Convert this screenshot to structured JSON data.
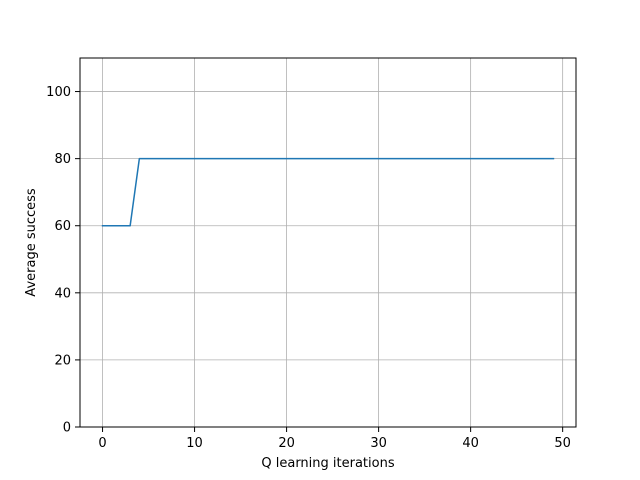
{
  "chart_data": {
    "type": "line",
    "title": "",
    "xlabel": "Q learning iterations",
    "ylabel": "Average success",
    "xlim": [
      -2.45,
      51.45
    ],
    "ylim": [
      0,
      110
    ],
    "xticks": [
      0,
      10,
      20,
      30,
      40,
      50
    ],
    "yticks": [
      0,
      20,
      40,
      60,
      80,
      100
    ],
    "grid": true,
    "legend": false,
    "series": [
      {
        "color": "#1f77b4",
        "x": [
          0,
          1,
          2,
          3,
          4,
          5,
          6,
          7,
          8,
          9,
          10,
          11,
          12,
          13,
          14,
          15,
          16,
          17,
          18,
          19,
          20,
          21,
          22,
          23,
          24,
          25,
          26,
          27,
          28,
          29,
          30,
          31,
          32,
          33,
          34,
          35,
          36,
          37,
          38,
          39,
          40,
          41,
          42,
          43,
          44,
          45,
          46,
          47,
          48,
          49
        ],
        "y": [
          60,
          60,
          60,
          60,
          80,
          80,
          80,
          80,
          80,
          80,
          80,
          80,
          80,
          80,
          80,
          80,
          80,
          80,
          80,
          80,
          80,
          80,
          80,
          80,
          80,
          80,
          80,
          80,
          80,
          80,
          80,
          80,
          80,
          80,
          80,
          80,
          80,
          80,
          80,
          80,
          80,
          80,
          80,
          80,
          80,
          80,
          80,
          80,
          80,
          80
        ]
      }
    ]
  }
}
